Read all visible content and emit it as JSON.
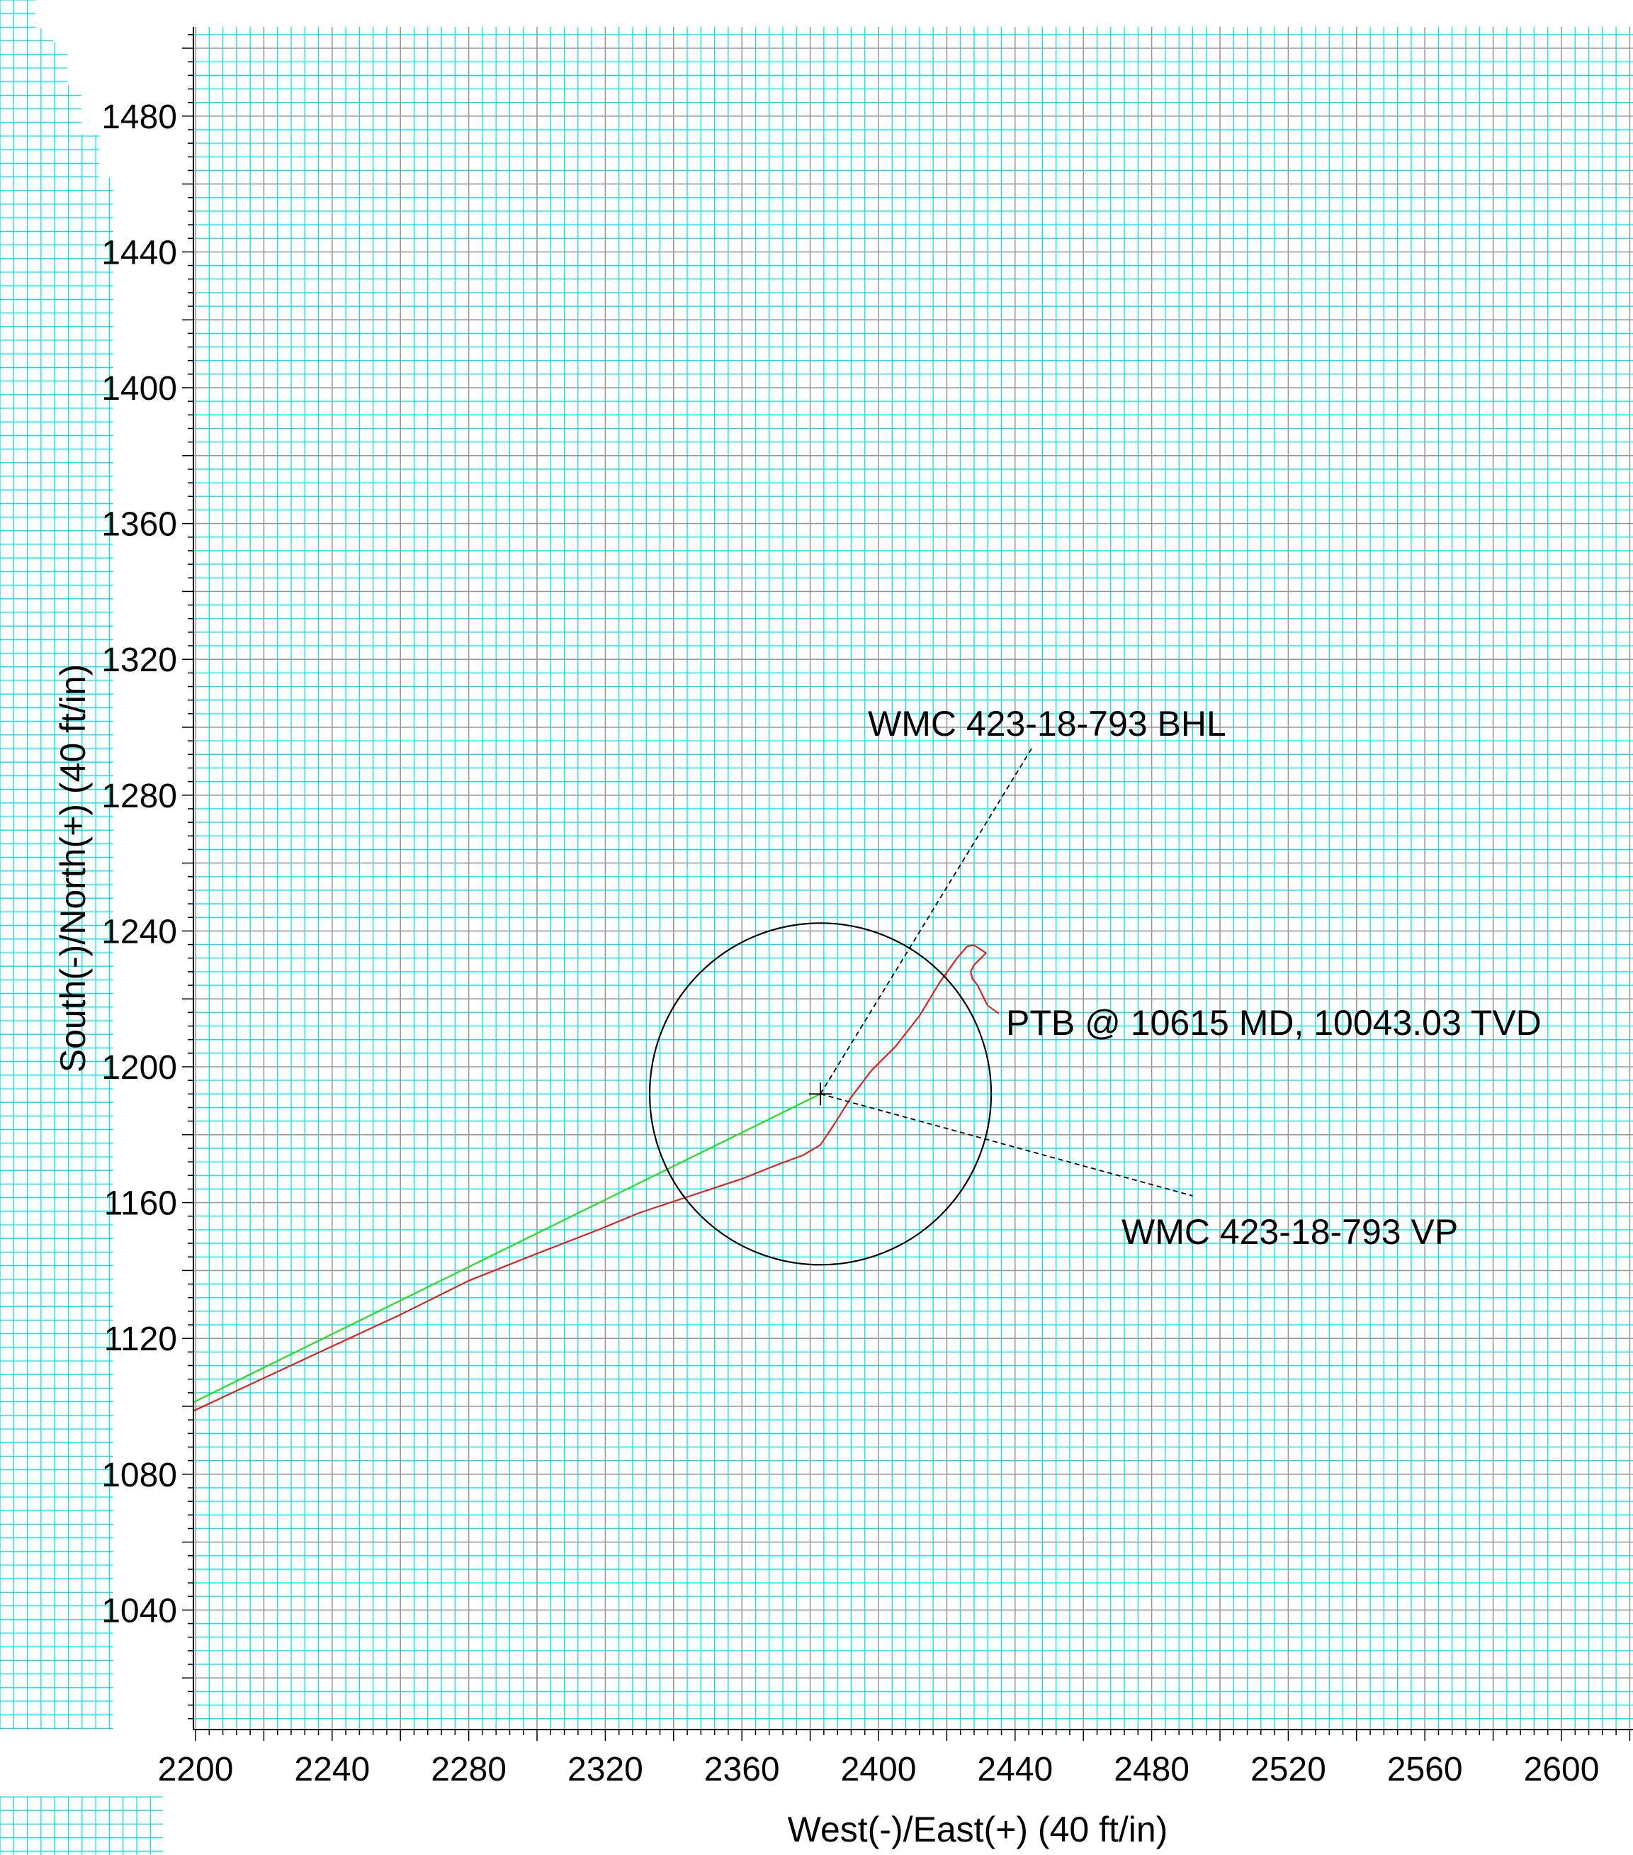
{
  "chart_data": {
    "type": "line",
    "xlabel": "West(-)/East(+) (40 ft/in)",
    "ylabel": "South(-)/North(+) (40 ft/in)",
    "xlim": [
      2198,
      2622
    ],
    "ylim": [
      1005,
      1506
    ],
    "x_ticks": [
      2200,
      2240,
      2280,
      2320,
      2360,
      2400,
      2440,
      2480,
      2520,
      2560,
      2600
    ],
    "y_ticks": [
      1040,
      1080,
      1120,
      1160,
      1200,
      1240,
      1280,
      1320,
      1360,
      1400,
      1440,
      1480
    ],
    "grid": {
      "on": true,
      "major": 20,
      "minor": 4
    },
    "colors": {
      "minor_grid": "#00e5e5",
      "major_grid": "#9a9a9a",
      "plan_line": "#22dd22",
      "actual_line": "#e02020",
      "target_circle": "#000000",
      "leader": "#000000"
    },
    "series": [
      {
        "color_key": "plan_line",
        "x": [
          2198,
          2383
        ],
        "y": [
          1100.5,
          1192
        ]
      },
      {
        "color_key": "actual_line",
        "x": [
          2198,
          2230,
          2260,
          2280,
          2300,
          2318,
          2330,
          2345,
          2360,
          2370,
          2378,
          2383,
          2387,
          2392,
          2398,
          2405,
          2412,
          2418,
          2423,
          2426,
          2428,
          2430,
          2431.5,
          2430,
          2428,
          2427,
          2427.5,
          2429,
          2430,
          2431,
          2432
        ],
        "y": [
          1098,
          1113,
          1127,
          1137,
          1145,
          1152,
          1157,
          1162,
          1167,
          1171,
          1174,
          1177,
          1183,
          1191,
          1199,
          1206,
          1215,
          1225,
          1232,
          1235.5,
          1235.8,
          1234.5,
          1233.5,
          1232,
          1230,
          1228,
          1226,
          1224,
          1222,
          1220,
          1218
        ]
      }
    ],
    "target_circle": {
      "center": [
        2383,
        1192
      ],
      "radius": 50
    },
    "annotations": [
      {
        "text": "WMC 423-18-793 BHL",
        "point": [
          2383,
          1192
        ],
        "leader_to": [
          2445,
          1294
        ]
      },
      {
        "text": "PTB @ 10615 MD, 10043.03 TVD",
        "point": [
          2432,
          1218
        ],
        "leader_to": [
          2432,
          1218
        ]
      },
      {
        "text": "WMC 423-18-793 VP",
        "point": [
          2383,
          1192
        ],
        "leader_to": [
          2492,
          1162
        ]
      }
    ]
  }
}
